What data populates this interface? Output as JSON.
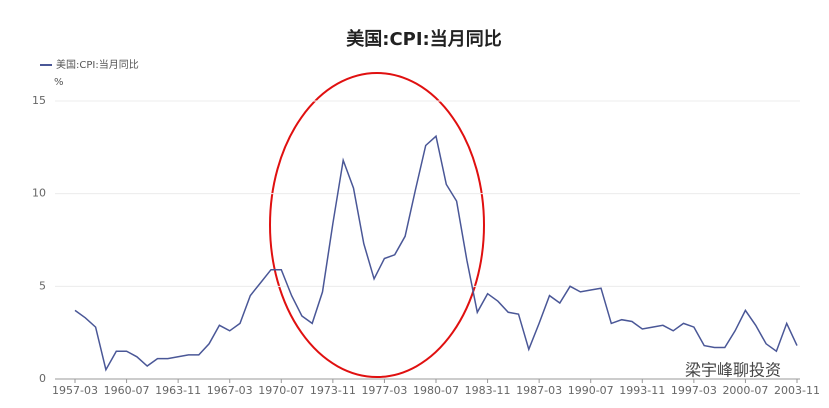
{
  "chart_data": {
    "type": "line",
    "title": "美国:CPI:当月同比",
    "y_unit": "%",
    "categories": [
      "1957-03",
      null,
      null,
      null,
      null,
      "1960-07",
      null,
      null,
      null,
      null,
      "1963-11",
      null,
      null,
      null,
      null,
      "1967-03",
      null,
      null,
      null,
      null,
      "1970-07",
      null,
      null,
      null,
      null,
      "1973-11",
      null,
      null,
      null,
      null,
      "1977-03",
      null,
      null,
      null,
      null,
      "1980-07",
      null,
      null,
      null,
      null,
      "1983-11",
      null,
      null,
      null,
      null,
      "1987-03",
      null,
      null,
      null,
      null,
      "1990-07",
      null,
      null,
      null,
      null,
      "1993-11",
      null,
      null,
      null,
      null,
      "1997-03",
      null,
      null,
      null,
      null,
      "2000-07",
      null,
      null,
      null,
      null,
      "2003-11"
    ],
    "series": [
      {
        "name": "美国:CPI:当月同比",
        "color": "#4a5797",
        "values": [
          3.7,
          3.3,
          2.8,
          0.5,
          1.5,
          1.5,
          1.2,
          0.7,
          1.1,
          1.1,
          1.2,
          1.3,
          1.3,
          1.9,
          2.9,
          2.6,
          3.0,
          4.5,
          5.2,
          5.9,
          5.9,
          4.5,
          3.4,
          3.0,
          4.7,
          8.4,
          11.8,
          10.3,
          7.3,
          5.4,
          6.5,
          6.7,
          7.7,
          10.2,
          12.6,
          13.1,
          10.5,
          9.6,
          6.4,
          3.6,
          4.6,
          4.2,
          3.6,
          3.5,
          1.6,
          3.0,
          4.5,
          4.1,
          5.0,
          4.7,
          4.8,
          4.9,
          3.0,
          3.2,
          3.1,
          2.7,
          2.8,
          2.9,
          2.6,
          3.0,
          2.8,
          1.8,
          1.7,
          1.7,
          2.6,
          3.7,
          2.9,
          1.9,
          1.5,
          3.0,
          1.8
        ]
      }
    ],
    "ylim": [
      0,
      15
    ],
    "yticks": [
      0,
      5,
      10,
      15
    ],
    "grid": true,
    "watermark": "梁宇峰聊投资"
  }
}
